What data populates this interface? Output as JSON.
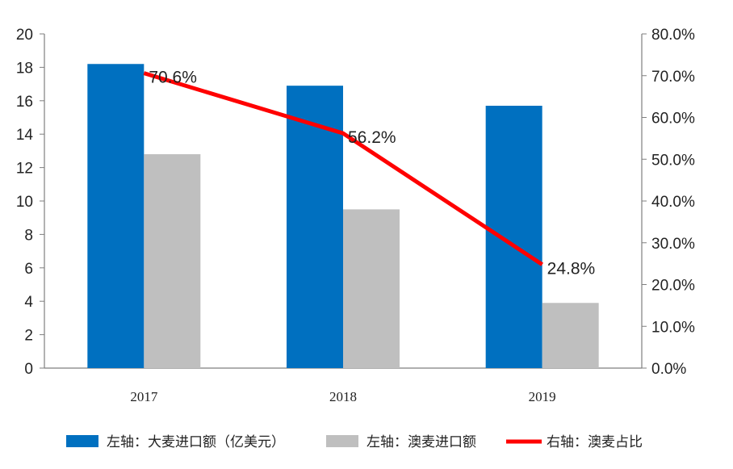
{
  "chart_data": {
    "type": "bar",
    "categories": [
      "2017",
      "2018",
      "2019"
    ],
    "series": [
      {
        "name": "左轴：大麦进口额（亿美元）",
        "type": "bar",
        "axis": "left",
        "color": "#0070C0",
        "values": [
          18.2,
          16.9,
          15.7
        ]
      },
      {
        "name": "左轴：澳麦进口额",
        "type": "bar",
        "axis": "left",
        "color": "#BFBFBF",
        "values": [
          12.8,
          9.5,
          3.9
        ]
      },
      {
        "name": "右轴：澳麦占比",
        "type": "line",
        "axis": "right",
        "color": "#FF0000",
        "values": [
          70.6,
          56.2,
          24.8
        ],
        "labels": [
          "70.6%",
          "56.2%",
          "24.8%"
        ]
      }
    ],
    "y_left": {
      "min": 0,
      "max": 20,
      "ticks": [
        "0",
        "2",
        "4",
        "6",
        "8",
        "10",
        "12",
        "14",
        "16",
        "18",
        "20"
      ]
    },
    "y_right": {
      "min": 0,
      "max": 80,
      "ticks": [
        "0.0%",
        "10.0%",
        "20.0%",
        "30.0%",
        "40.0%",
        "50.0%",
        "60.0%",
        "70.0%",
        "80.0%"
      ]
    },
    "grid": false,
    "legend_position": "bottom"
  }
}
